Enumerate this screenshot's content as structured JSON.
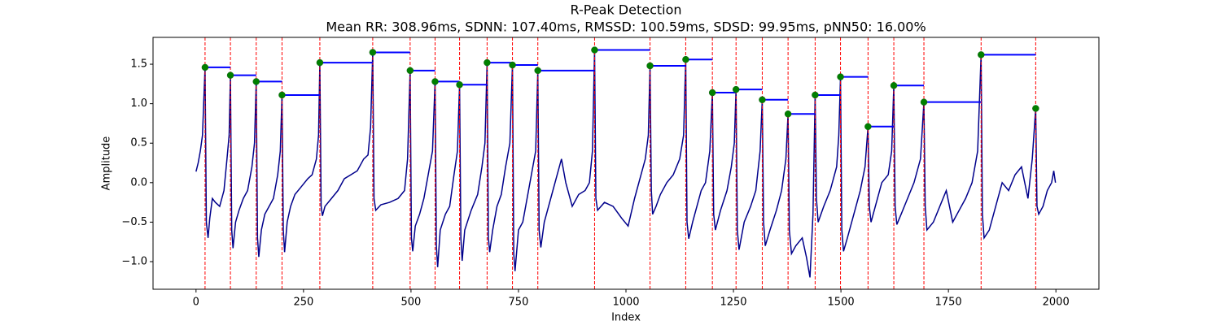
{
  "chart_data": {
    "type": "line",
    "title": "R-Peak Detection",
    "subtitle": "Mean RR: 308.96ms, SDNN: 107.40ms, RMSSD: 100.59ms, SDSD: 99.95ms, pNN50: 16.00%",
    "xlabel": "Index",
    "ylabel": "Amplitude",
    "xlim": [
      -100,
      2100
    ],
    "ylim": [
      -1.35,
      1.84
    ],
    "xticks": [
      0,
      250,
      500,
      750,
      1000,
      1250,
      1500,
      1750,
      2000
    ],
    "yticks": [
      {
        "value": -1,
        "label": "−1.0"
      },
      {
        "value": -0.5,
        "label": "−0.5"
      },
      {
        "value": 0,
        "label": "0.0"
      },
      {
        "value": 0.5,
        "label": "0.5"
      },
      {
        "value": 1,
        "label": "1.0"
      },
      {
        "value": 1.5,
        "label": "1.5"
      }
    ],
    "x": [
      0,
      5,
      10,
      15,
      21,
      24,
      28,
      32,
      38,
      45,
      55,
      65,
      72,
      77,
      80,
      83,
      86,
      92,
      100,
      110,
      120,
      130,
      136,
      140,
      143,
      146,
      152,
      160,
      170,
      180,
      190,
      196,
      200,
      203,
      206,
      212,
      220,
      230,
      245,
      260,
      270,
      280,
      285,
      288,
      291,
      294,
      300,
      315,
      330,
      345,
      360,
      375,
      390,
      400,
      406,
      411,
      414,
      418,
      430,
      450,
      470,
      485,
      492,
      498,
      501,
      504,
      510,
      520,
      530,
      540,
      550,
      556,
      559,
      562,
      568,
      580,
      590,
      600,
      608,
      613,
      616,
      619,
      625,
      640,
      655,
      665,
      672,
      677,
      680,
      683,
      690,
      700,
      710,
      720,
      730,
      736,
      739,
      742,
      750,
      760,
      770,
      780,
      790,
      795,
      798,
      802,
      810,
      825,
      840,
      850,
      860,
      875,
      890,
      905,
      915,
      922,
      927,
      930,
      934,
      950,
      970,
      990,
      1005,
      1020,
      1035,
      1045,
      1052,
      1056,
      1059,
      1062,
      1070,
      1080,
      1095,
      1110,
      1125,
      1134,
      1139,
      1142,
      1146,
      1155,
      1165,
      1175,
      1185,
      1195,
      1201,
      1204,
      1208,
      1220,
      1235,
      1245,
      1252,
      1256,
      1259,
      1263,
      1275,
      1290,
      1302,
      1312,
      1317,
      1320,
      1324,
      1335,
      1350,
      1362,
      1372,
      1377,
      1380,
      1385,
      1395,
      1410,
      1420,
      1428,
      1435,
      1440,
      1443,
      1447,
      1460,
      1475,
      1490,
      1495,
      1499,
      1502,
      1506,
      1515,
      1530,
      1545,
      1556,
      1563,
      1566,
      1570,
      1580,
      1595,
      1610,
      1618,
      1623,
      1626,
      1630,
      1640,
      1655,
      1670,
      1685,
      1693,
      1696,
      1700,
      1715,
      1730,
      1745,
      1760,
      1775,
      1790,
      1805,
      1818,
      1826,
      1829,
      1833,
      1845,
      1860,
      1875,
      1890,
      1905,
      1920,
      1935,
      1945,
      1953,
      1956,
      1960,
      1970,
      1980,
      1990,
      1995,
      1999
    ],
    "series": [
      {
        "color": "#00008b",
        "values": [
          0.14,
          0.25,
          0.4,
          0.6,
          1.46,
          -0.5,
          -0.7,
          -0.45,
          -0.2,
          -0.25,
          -0.3,
          -0.1,
          0.3,
          0.6,
          1.36,
          -0.6,
          -0.83,
          -0.5,
          -0.35,
          -0.2,
          -0.1,
          0.2,
          0.5,
          1.28,
          -0.7,
          -0.94,
          -0.6,
          -0.4,
          -0.3,
          -0.2,
          0.1,
          0.4,
          1.11,
          -0.6,
          -0.88,
          -0.5,
          -0.3,
          -0.15,
          -0.05,
          0.05,
          0.1,
          0.3,
          0.6,
          1.52,
          -0.3,
          -0.42,
          -0.3,
          -0.2,
          -0.1,
          0.05,
          0.1,
          0.15,
          0.3,
          0.35,
          0.7,
          1.65,
          -0.2,
          -0.35,
          -0.28,
          -0.25,
          -0.2,
          -0.1,
          0.3,
          1.42,
          -0.7,
          -0.87,
          -0.55,
          -0.4,
          -0.2,
          0.1,
          0.4,
          1.28,
          -0.8,
          -1.07,
          -0.6,
          -0.4,
          -0.3,
          0.1,
          0.4,
          1.24,
          -0.7,
          -0.99,
          -0.6,
          -0.35,
          -0.15,
          0.2,
          0.5,
          1.52,
          -0.7,
          -0.88,
          -0.6,
          -0.3,
          -0.15,
          0.2,
          0.5,
          1.49,
          -0.9,
          -1.12,
          -0.6,
          -0.5,
          -0.2,
          0.1,
          0.4,
          1.42,
          -0.6,
          -0.82,
          -0.5,
          -0.2,
          0.1,
          0.3,
          0.0,
          -0.3,
          -0.15,
          -0.1,
          0.0,
          0.4,
          1.68,
          -0.2,
          -0.35,
          -0.25,
          -0.3,
          -0.45,
          -0.55,
          -0.2,
          0.1,
          0.3,
          0.6,
          1.48,
          -0.1,
          -0.4,
          -0.3,
          -0.15,
          0.0,
          0.1,
          0.3,
          0.6,
          1.56,
          -0.5,
          -0.71,
          -0.5,
          -0.3,
          -0.1,
          0.0,
          0.4,
          1.14,
          -0.4,
          -0.6,
          -0.35,
          -0.1,
          0.2,
          0.5,
          1.18,
          -0.6,
          -0.85,
          -0.5,
          -0.3,
          -0.1,
          0.4,
          1.05,
          -0.5,
          -0.8,
          -0.6,
          -0.35,
          -0.1,
          0.3,
          0.87,
          -0.6,
          -0.9,
          -0.8,
          -0.7,
          -0.95,
          -1.2,
          -0.4,
          1.11,
          -0.2,
          -0.5,
          -0.3,
          -0.1,
          0.2,
          0.6,
          1.34,
          -0.6,
          -0.87,
          -0.7,
          -0.4,
          -0.1,
          0.2,
          0.71,
          -0.3,
          -0.5,
          -0.3,
          0.0,
          0.1,
          0.4,
          1.23,
          -0.3,
          -0.53,
          -0.4,
          -0.2,
          0.0,
          0.3,
          1.02,
          -0.3,
          -0.6,
          -0.5,
          -0.3,
          -0.1,
          -0.5,
          -0.35,
          -0.2,
          0.0,
          0.4,
          1.62,
          -0.4,
          -0.7,
          -0.6,
          -0.3,
          0.0,
          -0.1,
          0.1,
          0.2,
          -0.2,
          0.3,
          0.94,
          -0.3,
          -0.4,
          -0.3,
          -0.1,
          0.0,
          0.15,
          0.0
        ]
      }
    ],
    "peaks": {
      "color": "green",
      "line_color": "red",
      "interval_color": "blue",
      "x": [
        21,
        80,
        140,
        200,
        288,
        411,
        498,
        556,
        613,
        677,
        736,
        795,
        927,
        1056,
        1139,
        1201,
        1256,
        1317,
        1377,
        1440,
        1499,
        1563,
        1623,
        1693,
        1826,
        1953
      ],
      "values": [
        1.46,
        1.36,
        1.28,
        1.11,
        1.52,
        1.65,
        1.42,
        1.28,
        1.24,
        1.52,
        1.49,
        1.42,
        1.68,
        1.48,
        1.56,
        1.14,
        1.18,
        1.05,
        0.87,
        1.11,
        1.34,
        0.71,
        1.23,
        1.02,
        1.62,
        0.94
      ]
    }
  }
}
